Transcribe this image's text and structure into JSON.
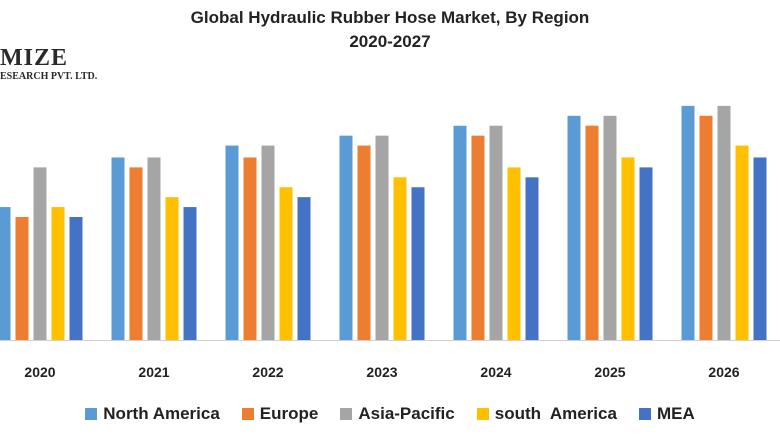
{
  "chart_data": {
    "type": "bar",
    "title_lines": [
      "Global Hydraulic Rubber Hose Market, By Region",
      "2020-2027"
    ],
    "xlabel": "",
    "ylabel": "",
    "categories": [
      "2020",
      "2021",
      "2022",
      "2023",
      "2024",
      "2025",
      "2026"
    ],
    "ylim": [
      0,
      250
    ],
    "grid": false,
    "legend_placement": "bottom",
    "series": [
      {
        "name": "North America",
        "color": "#5B9BD5",
        "values": [
          134,
          184,
          196,
          206,
          216,
          226,
          236
        ]
      },
      {
        "name": "Europe",
        "color": "#ED7D31",
        "values": [
          124,
          174,
          184,
          196,
          206,
          216,
          226
        ]
      },
      {
        "name": "Asia-Pacific",
        "color": "#A5A5A5",
        "values": [
          174,
          184,
          196,
          206,
          216,
          226,
          236
        ]
      },
      {
        "name": "south  America",
        "color": "#FFC000",
        "values": [
          134,
          144,
          154,
          164,
          174,
          184,
          196
        ]
      },
      {
        "name": "MEA",
        "color": "#4472C4",
        "values": [
          124,
          134,
          144,
          154,
          164,
          174,
          184
        ]
      }
    ]
  },
  "watermark": {
    "line1": "MIZE",
    "line2": "ESEARCH PVT. LTD."
  }
}
